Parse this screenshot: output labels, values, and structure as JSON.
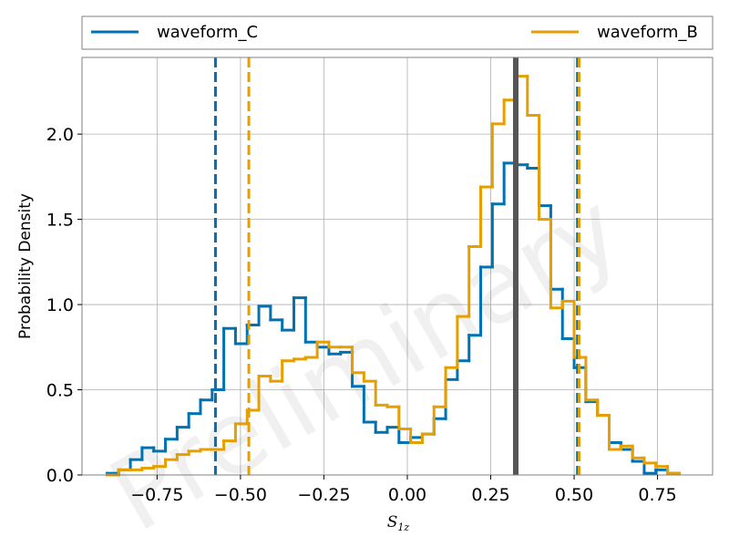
{
  "watermark": "Preliminary",
  "colors": {
    "waveform_C": "#0072B2",
    "waveform_B": "#E69F00",
    "truth_line": "#555555"
  },
  "chart_data": {
    "type": "histogram",
    "xlabel": "S",
    "xlabel_sub": "1z",
    "ylabel": "Probability Density",
    "xlim": [
      -0.975,
      0.915
    ],
    "ylim": [
      0.0,
      2.45
    ],
    "grid": true,
    "legend_position": "top, outside plot",
    "xticks": [
      -0.75,
      -0.5,
      -0.25,
      0.0,
      0.25,
      0.5,
      0.75
    ],
    "xtick_labels": [
      "−0.75",
      "−0.50",
      "−0.25",
      "0.00",
      "0.25",
      "0.50",
      "0.75"
    ],
    "yticks": [
      0.0,
      0.5,
      1.0,
      1.5,
      2.0
    ],
    "ytick_labels": [
      "0.0",
      "0.5",
      "1.0",
      "1.5",
      "2.0"
    ],
    "bin_edges": [
      -0.9,
      -0.865,
      -0.83,
      -0.795,
      -0.76,
      -0.725,
      -0.69,
      -0.655,
      -0.62,
      -0.585,
      -0.55,
      -0.515,
      -0.48,
      -0.445,
      -0.41,
      -0.375,
      -0.34,
      -0.305,
      -0.27,
      -0.235,
      -0.2,
      -0.165,
      -0.13,
      -0.095,
      -0.06,
      -0.025,
      0.01,
      0.045,
      0.08,
      0.115,
      0.15,
      0.185,
      0.22,
      0.255,
      0.29,
      0.325,
      0.36,
      0.395,
      0.43,
      0.465,
      0.5,
      0.535,
      0.57,
      0.605,
      0.64,
      0.675,
      0.71,
      0.745,
      0.78,
      0.815
    ],
    "series": [
      {
        "name": "waveform_C",
        "values": [
          0.01,
          0.03,
          0.09,
          0.16,
          0.14,
          0.21,
          0.28,
          0.36,
          0.44,
          0.5,
          0.86,
          0.77,
          0.88,
          0.99,
          0.91,
          0.85,
          1.04,
          0.78,
          0.75,
          0.71,
          0.72,
          0.52,
          0.31,
          0.25,
          0.28,
          0.19,
          0.22,
          0.24,
          0.33,
          0.56,
          0.67,
          0.82,
          1.22,
          1.59,
          1.83,
          1.82,
          1.8,
          1.58,
          1.09,
          0.8,
          0.63,
          0.43,
          0.35,
          0.19,
          0.15,
          0.08,
          0.01,
          0.03,
          0.01
        ],
        "quantile_lines": [
          -0.575,
          0.51
        ]
      },
      {
        "name": "waveform_B",
        "values": [
          0.0,
          0.03,
          0.03,
          0.04,
          0.05,
          0.09,
          0.12,
          0.14,
          0.15,
          0.15,
          0.2,
          0.3,
          0.38,
          0.58,
          0.55,
          0.67,
          0.68,
          0.69,
          0.78,
          0.75,
          0.75,
          0.6,
          0.55,
          0.41,
          0.4,
          0.27,
          0.19,
          0.24,
          0.4,
          0.63,
          0.93,
          1.34,
          1.69,
          2.06,
          2.2,
          2.34,
          2.11,
          1.5,
          0.98,
          1.02,
          0.69,
          0.44,
          0.35,
          0.15,
          0.17,
          0.1,
          0.07,
          0.05,
          0.01
        ],
        "quantile_lines": [
          -0.475,
          0.515
        ]
      }
    ],
    "reference_line": {
      "x": 0.325
    }
  }
}
